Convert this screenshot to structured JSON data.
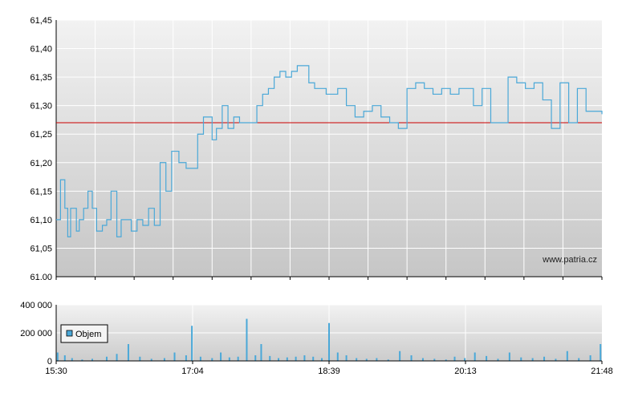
{
  "chart_data": [
    {
      "type": "line",
      "title": "",
      "xlabel": "",
      "ylabel": "",
      "ylim": [
        61.0,
        61.45
      ],
      "y_ticks": [
        "61,45",
        "61,40",
        "61,35",
        "61,30",
        "61,25",
        "61,20",
        "61,15",
        "61,10",
        "61,05",
        "61.00"
      ],
      "x_ticks": [
        "15:30",
        "17:04",
        "18:39",
        "20:13",
        "21:48"
      ],
      "reference_line": {
        "value": 61.27,
        "color": "#cc0000"
      },
      "watermark": "www.patria.cz",
      "grid": true,
      "series": [
        {
          "color": "#4aa8d8",
          "x": [
            "15:30",
            "15:33",
            "15:36",
            "15:38",
            "15:40",
            "15:44",
            "15:46",
            "15:49",
            "15:52",
            "15:55",
            "15:58",
            "16:02",
            "16:05",
            "16:08",
            "16:12",
            "16:15",
            "16:18",
            "16:22",
            "16:26",
            "16:30",
            "16:34",
            "16:38",
            "16:42",
            "16:46",
            "16:50",
            "16:55",
            "17:00",
            "17:04",
            "17:08",
            "17:12",
            "17:15",
            "17:18",
            "17:21",
            "17:25",
            "17:29",
            "17:33",
            "17:37",
            "17:41",
            "17:45",
            "17:49",
            "17:53",
            "17:57",
            "18:01",
            "18:05",
            "18:09",
            "18:13",
            "18:17",
            "18:21",
            "18:25",
            "18:29",
            "18:33",
            "18:37",
            "18:39",
            "18:45",
            "18:51",
            "18:57",
            "19:03",
            "19:09",
            "19:15",
            "19:21",
            "19:27",
            "19:33",
            "19:39",
            "19:45",
            "19:51",
            "19:57",
            "20:03",
            "20:09",
            "20:13",
            "20:19",
            "20:25",
            "20:31",
            "20:37",
            "20:43",
            "20:49",
            "20:55",
            "21:01",
            "21:07",
            "21:13",
            "21:19",
            "21:25",
            "21:31",
            "21:37",
            "21:43",
            "21:48"
          ],
          "y": [
            61.1,
            61.17,
            61.12,
            61.07,
            61.12,
            61.08,
            61.1,
            61.12,
            61.15,
            61.12,
            61.08,
            61.09,
            61.1,
            61.15,
            61.07,
            61.1,
            61.1,
            61.08,
            61.1,
            61.09,
            61.12,
            61.09,
            61.2,
            61.15,
            61.22,
            61.2,
            61.19,
            61.19,
            61.25,
            61.28,
            61.28,
            61.24,
            61.26,
            61.3,
            61.26,
            61.28,
            61.27,
            61.27,
            61.27,
            61.3,
            61.32,
            61.33,
            61.35,
            61.36,
            61.35,
            61.36,
            61.37,
            61.37,
            61.34,
            61.33,
            61.33,
            61.32,
            61.32,
            61.33,
            61.3,
            61.28,
            61.29,
            61.3,
            61.28,
            61.27,
            61.26,
            61.33,
            61.34,
            61.33,
            61.32,
            61.33,
            61.32,
            61.33,
            61.33,
            61.3,
            61.33,
            61.27,
            61.27,
            61.35,
            61.34,
            61.33,
            61.34,
            61.31,
            61.26,
            61.34,
            61.27,
            61.33,
            61.29,
            61.29,
            61.285
          ]
        }
      ]
    },
    {
      "type": "bar",
      "title": "",
      "xlabel": "",
      "ylabel": "",
      "ylim": [
        0,
        400000
      ],
      "y_ticks": [
        "400 000",
        "200 000",
        "0"
      ],
      "x_ticks": [
        "15:30",
        "17:04",
        "18:39",
        "20:13",
        "21:48"
      ],
      "grid": true,
      "legend": {
        "position": "left",
        "entries": [
          {
            "name": "Objem",
            "color": "#4aa8d8"
          }
        ]
      },
      "series": [
        {
          "name": "Objem",
          "color": "#4aa8d8",
          "x": [
            "15:31",
            "15:36",
            "15:41",
            "15:48",
            "15:55",
            "16:05",
            "16:12",
            "16:20",
            "16:28",
            "16:36",
            "16:45",
            "16:52",
            "17:00",
            "17:04",
            "17:10",
            "17:18",
            "17:24",
            "17:30",
            "17:36",
            "17:42",
            "17:48",
            "17:52",
            "17:58",
            "18:04",
            "18:10",
            "18:16",
            "18:22",
            "18:28",
            "18:34",
            "18:39",
            "18:45",
            "18:51",
            "18:58",
            "19:05",
            "19:12",
            "19:20",
            "19:28",
            "19:36",
            "19:44",
            "19:52",
            "20:00",
            "20:06",
            "20:13",
            "20:20",
            "20:28",
            "20:36",
            "20:44",
            "20:52",
            "21:00",
            "21:08",
            "21:16",
            "21:24",
            "21:32",
            "21:40",
            "21:47"
          ],
          "values": [
            60000,
            40000,
            20000,
            10000,
            15000,
            30000,
            50000,
            120000,
            30000,
            15000,
            20000,
            60000,
            40000,
            250000,
            30000,
            20000,
            60000,
            25000,
            30000,
            300000,
            40000,
            120000,
            35000,
            20000,
            25000,
            30000,
            40000,
            30000,
            20000,
            270000,
            60000,
            40000,
            20000,
            15000,
            20000,
            10000,
            70000,
            40000,
            20000,
            15000,
            10000,
            30000,
            20000,
            60000,
            35000,
            15000,
            60000,
            25000,
            20000,
            30000,
            15000,
            70000,
            20000,
            40000,
            120000
          ]
        }
      ]
    }
  ]
}
